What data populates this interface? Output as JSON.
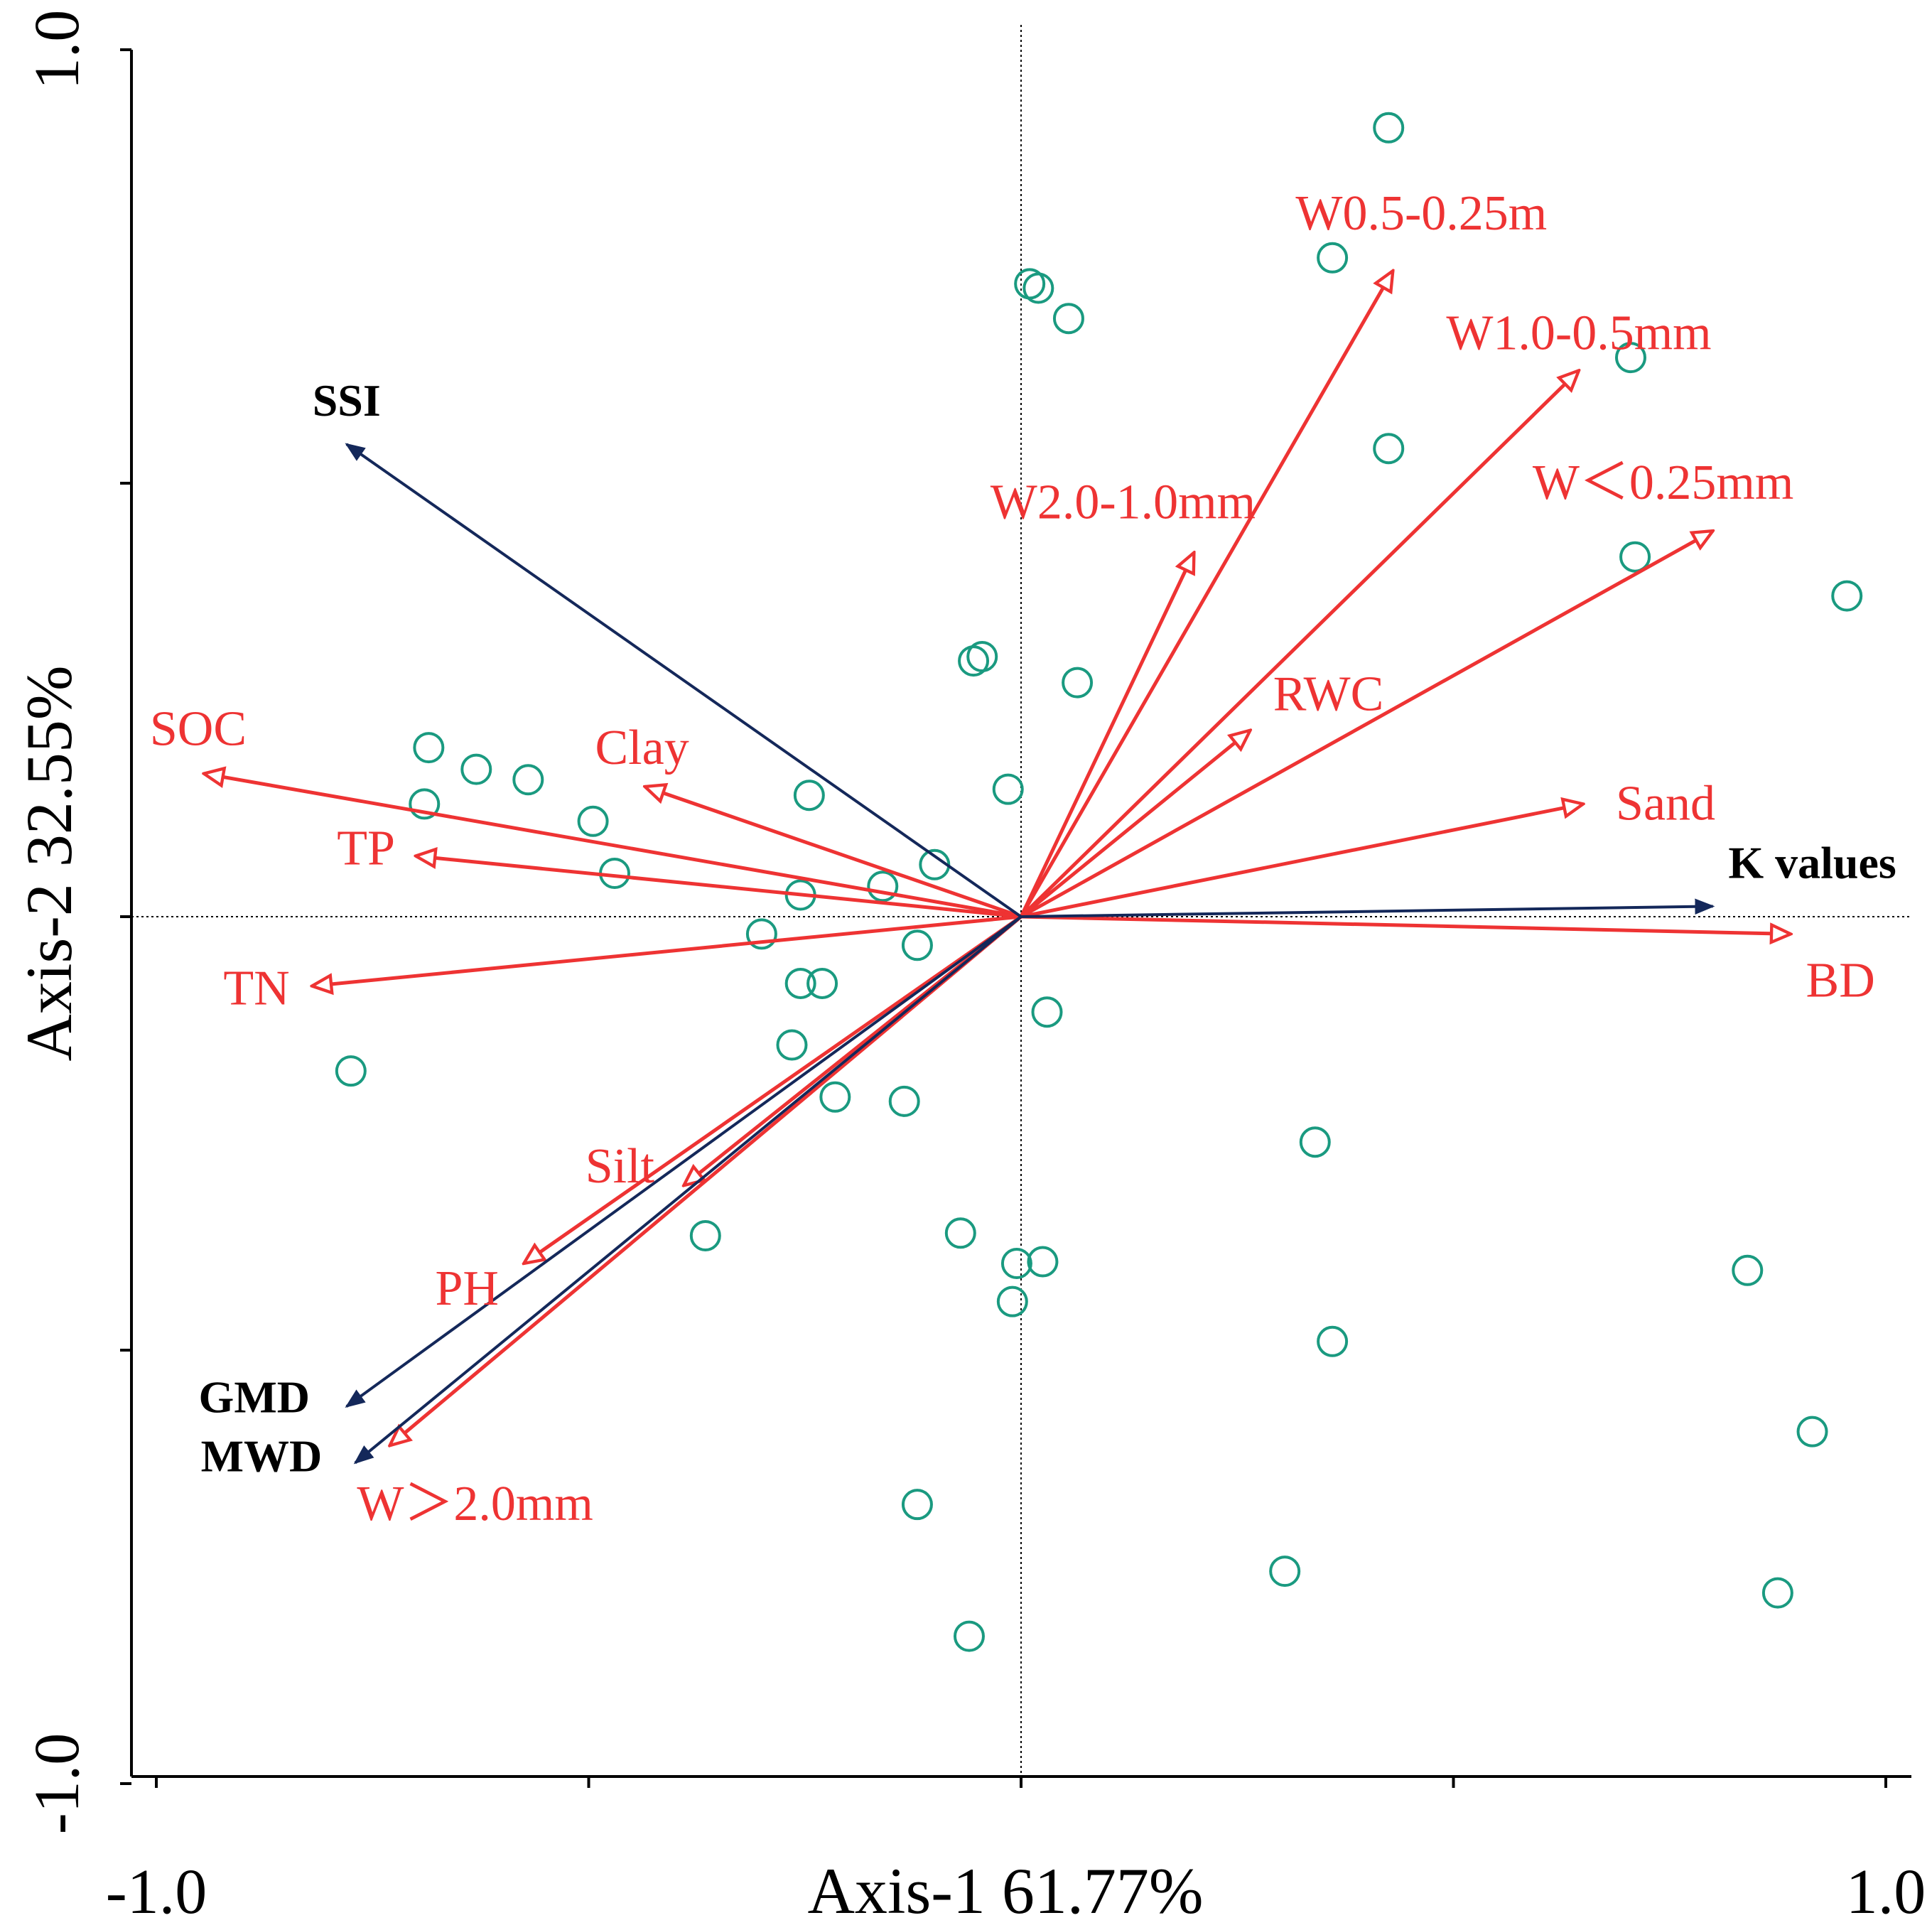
{
  "chart_data": {
    "type": "scatter",
    "subtype": "rda-biplot",
    "xlabel": "Axis-1 61.77%",
    "ylabel": "Axis-2 32.55%",
    "xlim": [
      -1.0,
      1.0
    ],
    "ylim": [
      -1.0,
      1.0
    ],
    "x_tick_labels": [
      {
        "value": -1.0,
        "label": "-1.0"
      },
      {
        "value": 1.0,
        "label": "1.0"
      }
    ],
    "y_tick_labels": [
      {
        "value": 1.0,
        "label": "1.0"
      },
      {
        "value": -1.0,
        "label": "-1.0"
      }
    ],
    "x_ticks": [
      -1.0,
      -0.5,
      0.0,
      0.5,
      1.0
    ],
    "y_ticks": [
      -1.0,
      -0.5,
      0.0,
      0.5,
      1.0
    ],
    "reference_lines": {
      "x": 0,
      "y": 0,
      "style": "dotted"
    },
    "colors": {
      "response": "#14285a",
      "explanatory": "#ee3333",
      "sites": "#1a9a80"
    },
    "response_arrows": [
      {
        "name": "SSI",
        "x": -0.78,
        "y": 0.545
      },
      {
        "name": "K values",
        "x": 0.8,
        "y": 0.012
      },
      {
        "name": "GMD",
        "x": -0.78,
        "y": -0.565
      },
      {
        "name": "MWD",
        "x": -0.77,
        "y": -0.63
      }
    ],
    "explanatory_arrows": [
      {
        "name": "SOC",
        "x": -0.945,
        "y": 0.165
      },
      {
        "name": "Clay",
        "x": -0.435,
        "y": 0.15
      },
      {
        "name": "TP",
        "x": -0.7,
        "y": 0.07
      },
      {
        "name": "TN",
        "x": -0.82,
        "y": -0.08
      },
      {
        "name": "Silt",
        "x": -0.39,
        "y": -0.31
      },
      {
        "name": "PH",
        "x": -0.575,
        "y": -0.4
      },
      {
        "name": "W＞2.0mm",
        "x": -0.73,
        "y": -0.61
      },
      {
        "name": "W0.5-0.25m",
        "x": 0.43,
        "y": 0.745
      },
      {
        "name": "W1.0-0.5mm",
        "x": 0.645,
        "y": 0.63
      },
      {
        "name": "W＜0.25mm",
        "x": 0.8,
        "y": 0.445
      },
      {
        "name": "W2.0-1.0mm",
        "x": 0.2,
        "y": 0.42
      },
      {
        "name": "RWC",
        "x": 0.265,
        "y": 0.215
      },
      {
        "name": "Sand",
        "x": 0.65,
        "y": 0.13
      },
      {
        "name": "BD",
        "x": 0.89,
        "y": -0.02
      }
    ],
    "site_points": [
      [
        0.425,
        0.91
      ],
      [
        0.36,
        0.76
      ],
      [
        0.01,
        0.73
      ],
      [
        0.02,
        0.725
      ],
      [
        0.055,
        0.69
      ],
      [
        0.705,
        0.645
      ],
      [
        0.425,
        0.54
      ],
      [
        0.71,
        0.415
      ],
      [
        0.955,
        0.37
      ],
      [
        -0.055,
        0.295
      ],
      [
        -0.045,
        0.3
      ],
      [
        0.065,
        0.27
      ],
      [
        -0.685,
        0.195
      ],
      [
        -0.63,
        0.17
      ],
      [
        -0.57,
        0.158
      ],
      [
        -0.69,
        0.13
      ],
      [
        -0.245,
        0.14
      ],
      [
        -0.015,
        0.147
      ],
      [
        -0.495,
        0.11
      ],
      [
        -0.47,
        0.05
      ],
      [
        -0.1,
        0.06
      ],
      [
        -0.16,
        0.035
      ],
      [
        -0.255,
        0.025
      ],
      [
        -0.3,
        -0.02
      ],
      [
        -0.12,
        -0.033
      ],
      [
        -0.255,
        -0.077
      ],
      [
        -0.23,
        -0.077
      ],
      [
        0.03,
        -0.11
      ],
      [
        -0.265,
        -0.148
      ],
      [
        -0.775,
        -0.178
      ],
      [
        -0.215,
        -0.208
      ],
      [
        -0.135,
        -0.213
      ],
      [
        0.34,
        -0.26
      ],
      [
        -0.365,
        -0.368
      ],
      [
        -0.07,
        -0.365
      ],
      [
        -0.005,
        -0.4
      ],
      [
        0.025,
        -0.398
      ],
      [
        -0.01,
        -0.444
      ],
      [
        0.84,
        -0.408
      ],
      [
        0.36,
        -0.49
      ],
      [
        0.915,
        -0.594
      ],
      [
        -0.12,
        -0.678
      ],
      [
        0.305,
        -0.755
      ],
      [
        0.875,
        -0.78
      ],
      [
        -0.06,
        -0.83
      ]
    ]
  }
}
